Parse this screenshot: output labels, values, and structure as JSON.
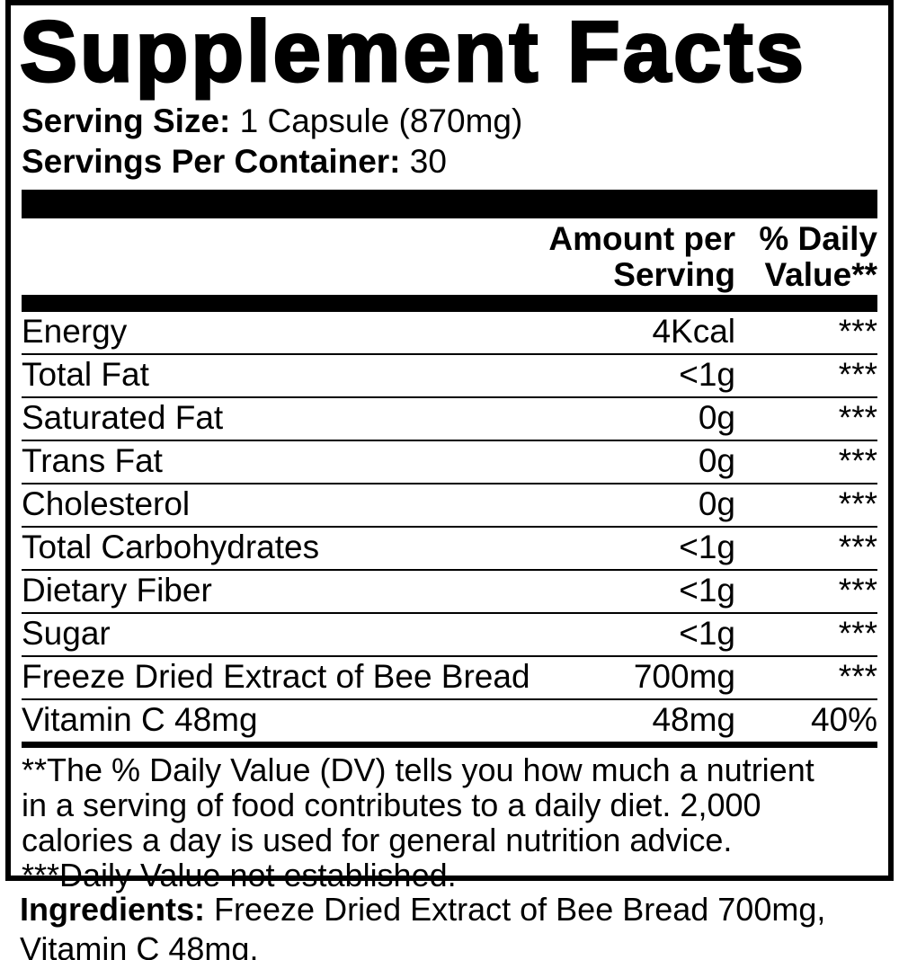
{
  "colors": {
    "ink": "#000000",
    "background": "#ffffff"
  },
  "title": "Supplement Facts",
  "serving": {
    "size_label": "Serving Size:",
    "size_value": "1 Capsule (870mg)",
    "per_container_label": "Servings Per Container:",
    "per_container_value": "30"
  },
  "table": {
    "header": {
      "amount_per_serving": "Amount per\nServing",
      "percent_daily_value": "% Daily\nValue**"
    },
    "rows": [
      {
        "label": "Energy",
        "amount": "4Kcal",
        "daily_value": "***"
      },
      {
        "label": "Total Fat",
        "amount": "<1g",
        "daily_value": "***"
      },
      {
        "label": "Saturated Fat",
        "amount": "0g",
        "daily_value": "***"
      },
      {
        "label": "Trans Fat",
        "amount": "0g",
        "daily_value": "***"
      },
      {
        "label": "Cholesterol",
        "amount": "0g",
        "daily_value": "***"
      },
      {
        "label": "Total Carbohydrates",
        "amount": "<1g",
        "daily_value": "***"
      },
      {
        "label": "Dietary Fiber",
        "amount": "<1g",
        "daily_value": "***"
      },
      {
        "label": "Sugar",
        "amount": "<1g",
        "daily_value": "***"
      },
      {
        "label": "Freeze Dried Extract of Bee Bread",
        "amount": "700mg",
        "daily_value": "***"
      },
      {
        "label": "Vitamin C 48mg",
        "amount": "48mg",
        "daily_value": "40%"
      }
    ]
  },
  "footnote": {
    "lines": [
      "**The % Daily Value (DV) tells you how much a nutrient",
      "in a serving of food contributes to a daily diet. 2,000",
      "calories a day is used for general nutrition advice.",
      "***Daily Value not established."
    ]
  },
  "ingredients": {
    "label": "Ingredients:",
    "text": "Freeze Dried Extract of Bee Bread 700mg, Vitamin C 48mg."
  }
}
